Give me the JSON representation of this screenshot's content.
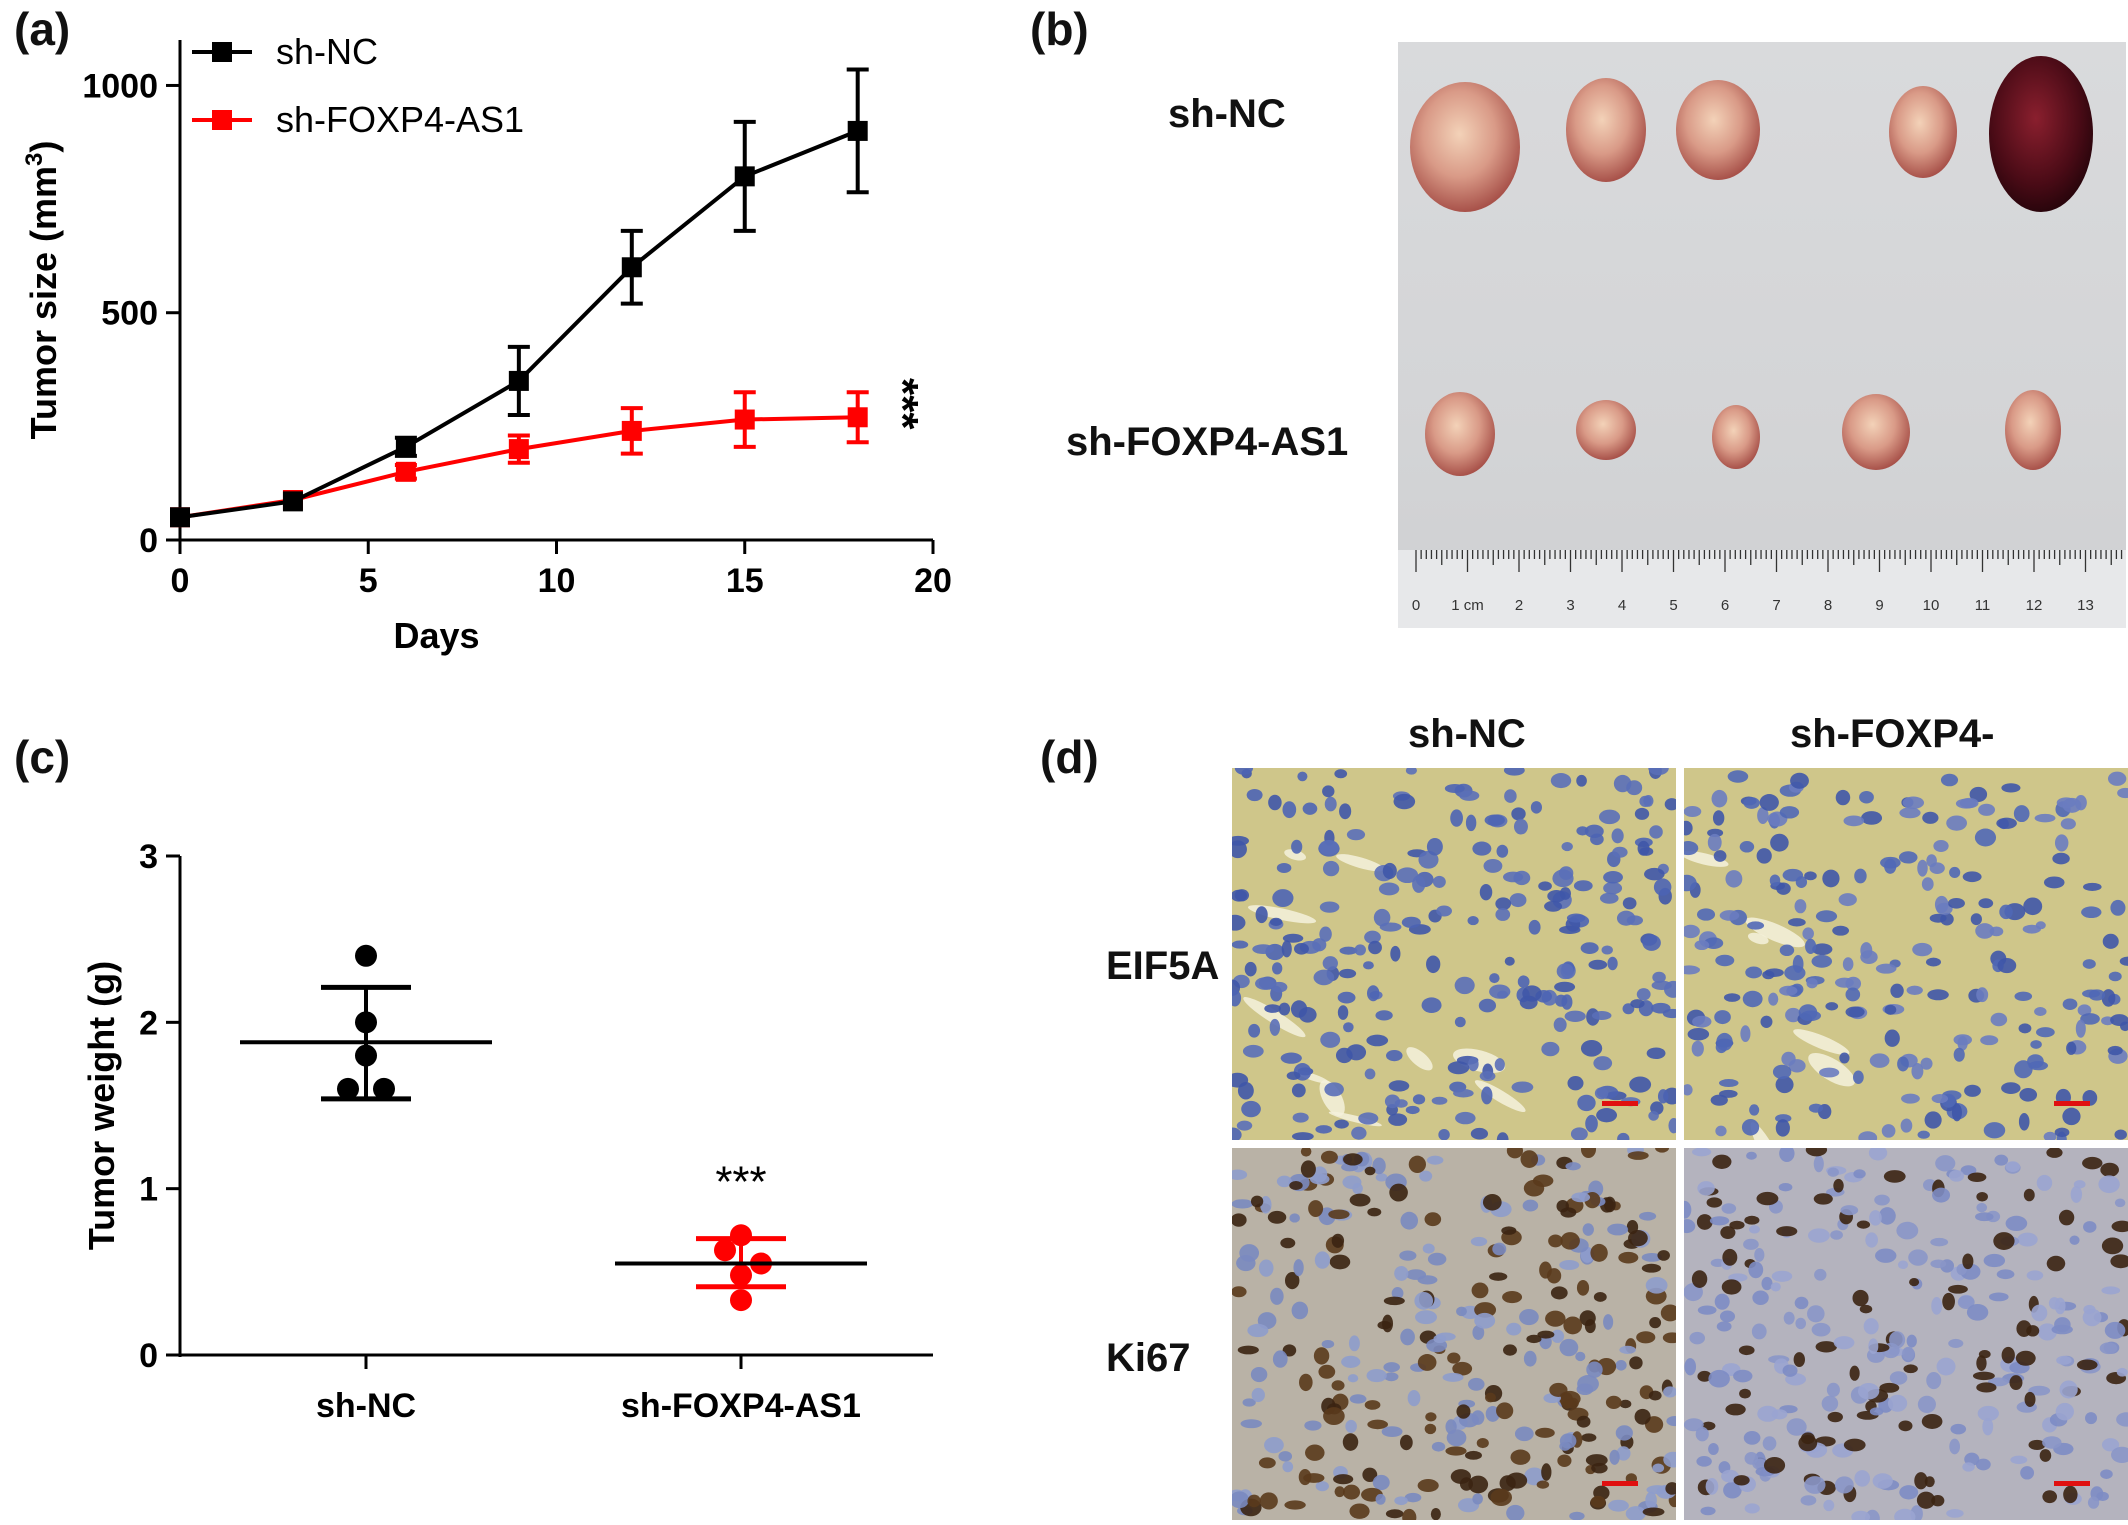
{
  "panels": {
    "a": "(a)",
    "b": "(b)",
    "c": "(c)",
    "d": "(d)"
  },
  "chart_data": [
    {
      "panel": "(a)",
      "type": "line",
      "xlabel": "Days",
      "ylabel": "Tumor size (mm",
      "ylabel_sup": "3",
      "ylabel_end": ")",
      "xlim": [
        0,
        20
      ],
      "ylim": [
        0,
        1100
      ],
      "xticks": [
        0,
        5,
        10,
        15,
        20
      ],
      "yticks": [
        0,
        500,
        1000
      ],
      "legend_position": "top-left",
      "annotation": "***",
      "series": [
        {
          "name": "sh-NC",
          "color": "#000000",
          "x": [
            0,
            3,
            6,
            9,
            12,
            15,
            18
          ],
          "y": [
            50,
            85,
            205,
            350,
            600,
            800,
            900
          ],
          "err": [
            8,
            10,
            20,
            75,
            80,
            120,
            135
          ]
        },
        {
          "name": "sh-FOXP4-AS1",
          "color": "#ff0000",
          "x": [
            0,
            3,
            6,
            9,
            12,
            15,
            18
          ],
          "y": [
            50,
            88,
            150,
            200,
            240,
            265,
            270
          ],
          "err": [
            8,
            10,
            15,
            30,
            50,
            60,
            55
          ]
        }
      ]
    },
    {
      "panel": "(c)",
      "type": "scatter",
      "ylabel": "Tumor weight (g)",
      "ylim": [
        0,
        3
      ],
      "yticks": [
        0,
        1,
        2,
        3
      ],
      "categories": [
        "sh-NC",
        "sh-FOXP4-AS1"
      ],
      "annotation": "***",
      "groups": [
        {
          "category": "sh-NC",
          "color": "#000000",
          "points": [
            2.4,
            2.0,
            1.8,
            1.6,
            1.6
          ],
          "mean": 1.88,
          "sd_low": 1.54,
          "sd_high": 2.21
        },
        {
          "category": "sh-FOXP4-AS1",
          "color": "#ff0000",
          "points": [
            0.72,
            0.63,
            0.55,
            0.48,
            0.33
          ],
          "mean": 0.55,
          "sd_low": 0.41,
          "sd_high": 0.7
        }
      ]
    }
  ],
  "panel_b": {
    "row_labels": [
      "sh-NC",
      "sh-FOXP4-AS1"
    ],
    "ruler_labels": [
      "0",
      "1 cm",
      "2",
      "3",
      "4",
      "5",
      "6",
      "7",
      "8",
      "9",
      "10",
      "11",
      "12",
      "13"
    ]
  },
  "panel_d": {
    "col_labels": [
      "sh-NC",
      "sh-FOXP4-"
    ],
    "row_labels": [
      "EIF5A",
      "Ki67"
    ]
  },
  "colors": {
    "black_series": "#000000",
    "red_series": "#ff0000",
    "scale_bar": "#e01010"
  }
}
